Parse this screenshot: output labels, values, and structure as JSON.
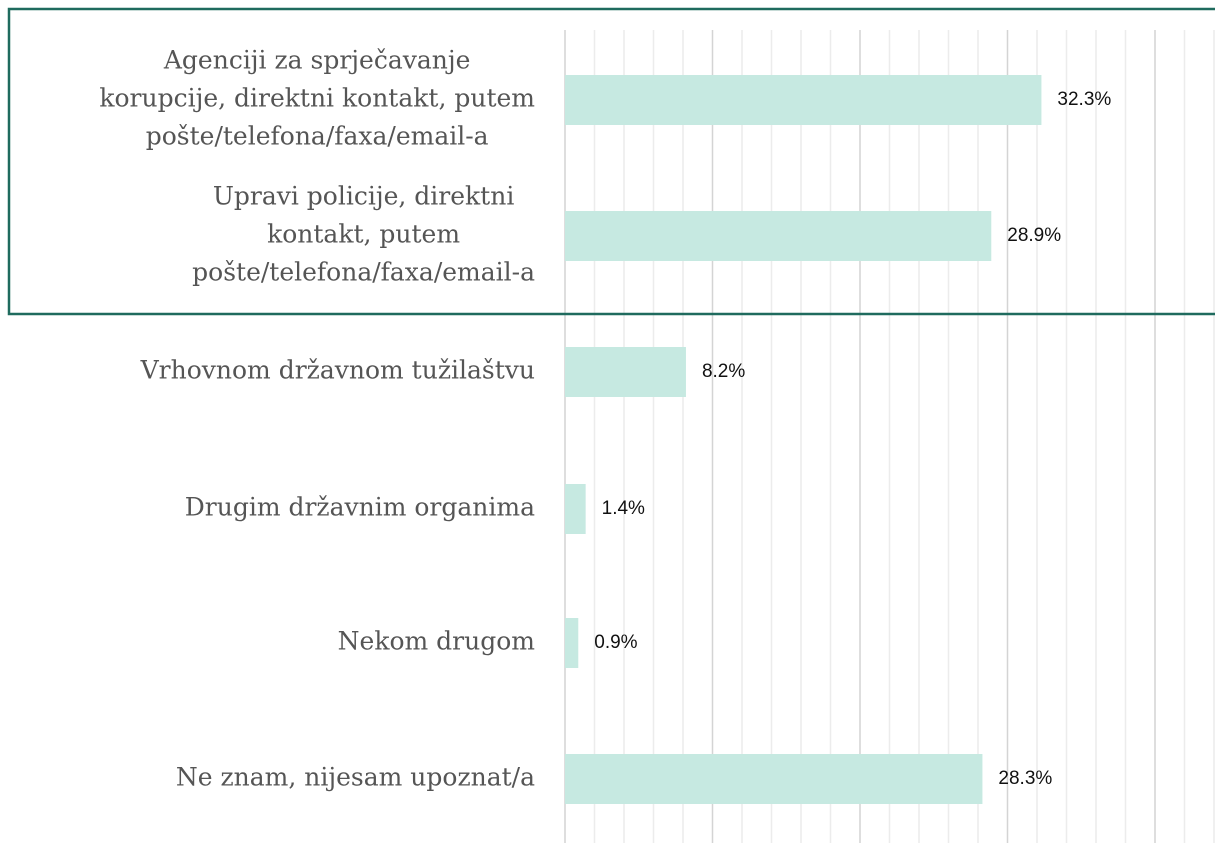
{
  "chart_data": {
    "type": "bar",
    "orientation": "horizontal",
    "categories": [
      [
        "Agenciji za sprječavanje",
        "korupcije, direktni kontakt, putem",
        "pošte/telefona/faxa/email-a"
      ],
      [
        "Upravi policije, direktni",
        "kontakt, putem",
        "pošte/telefona/faxa/email-a"
      ],
      [
        "Vrhovnom državnom tužilaštvu"
      ],
      [
        "Drugim državnim organima"
      ],
      [
        "Nekom drugom"
      ],
      [
        "Ne znam, nijesam upoznat/a"
      ]
    ],
    "values": [
      32.3,
      28.9,
      8.2,
      1.4,
      0.9,
      28.3
    ],
    "value_labels": [
      "32.3%",
      "28.9%",
      "8.2%",
      "1.4%",
      "0.9%",
      "28.3%"
    ],
    "color": "#c6e9e1",
    "xlim": [
      0,
      44
    ],
    "xticks": [
      0,
      10,
      20,
      30,
      40
    ],
    "minor_xticks": [
      2,
      4,
      6,
      8,
      12,
      14,
      16,
      18,
      22,
      24,
      26,
      28,
      32,
      34,
      36,
      38,
      42,
      44
    ],
    "grid": true
  }
}
